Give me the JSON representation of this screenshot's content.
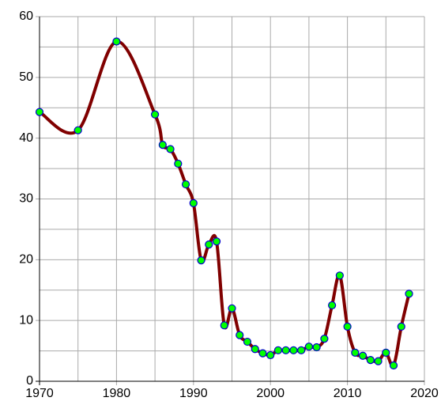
{
  "chart_data": {
    "type": "line",
    "x": [
      1970,
      1975,
      1980,
      1985,
      1986,
      1987,
      1988,
      1989,
      1990,
      1991,
      1992,
      1993,
      1994,
      1995,
      1996,
      1997,
      1998,
      1999,
      2000,
      2001,
      2002,
      2003,
      2004,
      2005,
      2006,
      2007,
      2008,
      2009,
      2010,
      2011,
      2012,
      2013,
      2014,
      2015,
      2016,
      2017,
      2018
    ],
    "series": [
      {
        "color": "#800000",
        "marker_color": "#00ff00",
        "marker_edge": "#0000cc",
        "values": [
          44.3,
          41.3,
          55.9,
          43.9,
          38.9,
          38.2,
          35.8,
          32.4,
          29.3,
          19.9,
          22.5,
          23.0,
          9.2,
          12.0,
          7.6,
          6.5,
          5.3,
          4.6,
          4.3,
          5.1,
          5.1,
          5.1,
          5.1,
          5.7,
          5.6,
          7.0,
          12.5,
          17.4,
          9.0,
          4.7,
          4.2,
          3.5,
          3.3,
          4.7,
          2.6,
          9.0,
          14.4
        ]
      }
    ],
    "xlim": [
      1970,
      2020
    ],
    "xticks": [
      1970,
      1980,
      1990,
      2000,
      2010,
      2020
    ],
    "xminor": [
      1975,
      1985,
      1995,
      2005,
      2015
    ],
    "ylim": [
      0,
      60
    ],
    "yticks": [
      0,
      10,
      20,
      30,
      40,
      50,
      60
    ],
    "yminor": [
      5,
      15,
      25,
      35,
      45,
      55
    ],
    "grid": true,
    "smooth": true
  }
}
